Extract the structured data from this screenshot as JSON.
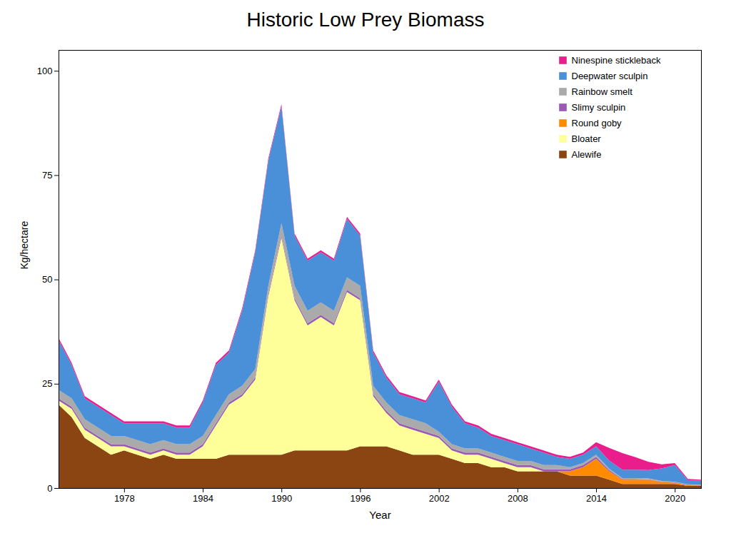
{
  "chart_data": {
    "type": "area",
    "title": "Historic Low Prey Biomass",
    "xlabel": "Year",
    "ylabel": "Kg/hectare",
    "stacked": true,
    "grid": false,
    "legend": "upper right",
    "xlim": [
      1973,
      2022
    ],
    "xticks": [
      1978,
      1984,
      1990,
      1996,
      2002,
      2008,
      2014,
      2020
    ],
    "ylim": [
      0,
      105
    ],
    "yticks": [
      0,
      25,
      50,
      75,
      100
    ],
    "x": [
      1973,
      1974,
      1975,
      1976,
      1977,
      1978,
      1979,
      1980,
      1981,
      1982,
      1983,
      1984,
      1985,
      1986,
      1987,
      1988,
      1989,
      1990,
      1991,
      1992,
      1993,
      1994,
      1995,
      1996,
      1997,
      1998,
      1999,
      2000,
      2001,
      2002,
      2003,
      2004,
      2005,
      2006,
      2007,
      2008,
      2009,
      2010,
      2011,
      2012,
      2013,
      2014,
      2015,
      2016,
      2017,
      2018,
      2019,
      2020,
      2021,
      2022
    ],
    "series": [
      {
        "name": "Alewife",
        "color": "#8B4513",
        "values": [
          20,
          17,
          12,
          10,
          8,
          9,
          8,
          7,
          8,
          7,
          7,
          7,
          7,
          8,
          8,
          8,
          8,
          8,
          9,
          9,
          9,
          9,
          9,
          10,
          10,
          10,
          9,
          8,
          8,
          8,
          7,
          6,
          6,
          5,
          5,
          4,
          4,
          4,
          4,
          3,
          3,
          3,
          2,
          1,
          1,
          1,
          1,
          1,
          0.5,
          0.5
        ]
      },
      {
        "name": "Bloater",
        "color": "#FFFF99",
        "values": [
          1,
          2,
          2,
          2,
          2,
          1,
          1,
          1,
          1,
          1,
          1,
          3,
          8,
          12,
          14,
          18,
          38,
          52,
          36,
          30,
          32,
          30,
          38,
          35,
          12,
          8,
          6,
          6,
          5,
          4,
          2,
          2,
          2,
          2,
          1,
          1,
          1,
          0,
          0,
          0,
          0,
          0,
          0,
          0,
          0,
          0,
          0,
          0,
          0,
          0
        ]
      },
      {
        "name": "Round goby",
        "color": "#FF8C00",
        "values": [
          0,
          0,
          0,
          0,
          0,
          0,
          0,
          0,
          0,
          0,
          0,
          0,
          0,
          0,
          0,
          0,
          0,
          0,
          0,
          0,
          0,
          0,
          0,
          0,
          0,
          0,
          0,
          0,
          0,
          0,
          0,
          0,
          0,
          0,
          0,
          0,
          0,
          0,
          0,
          1,
          2,
          4,
          2,
          1,
          1,
          1,
          0.5,
          0.3,
          0.2,
          0.1
        ]
      },
      {
        "name": "Slimy sculpin",
        "color": "#9B59B6",
        "values": [
          0.5,
          0.5,
          0.5,
          0.5,
          0.5,
          0.5,
          0.5,
          0.5,
          0.5,
          0.5,
          0.5,
          0.5,
          0.5,
          0.5,
          0.5,
          0.5,
          0.5,
          0.5,
          0.5,
          0.5,
          0.5,
          0.5,
          0.5,
          0.5,
          0.5,
          0.5,
          0.5,
          0.5,
          0.5,
          0.5,
          0.5,
          0.5,
          0.5,
          0.5,
          0.5,
          0.5,
          0.5,
          0.5,
          0.5,
          0.5,
          0.5,
          0.5,
          0.3,
          0.2,
          0.2,
          0.1,
          0.1,
          0.1,
          0.1,
          0.1
        ]
      },
      {
        "name": "Rainbow smelt",
        "color": "#AAAAAA",
        "values": [
          2,
          2,
          2,
          2,
          2,
          2,
          2,
          2,
          2,
          2,
          2,
          2,
          2,
          2,
          2,
          2,
          2,
          3,
          3,
          3,
          3,
          3,
          3,
          3,
          2,
          2,
          2,
          2,
          2,
          1,
          1,
          1,
          1,
          1,
          1,
          1,
          1,
          1,
          1,
          0.5,
          0.5,
          0.5,
          0.3,
          0.2,
          0.2,
          0.2,
          0.1,
          0.1,
          0.1,
          0.1
        ]
      },
      {
        "name": "Deepwater sculpin",
        "color": "#4A90D9",
        "values": [
          12,
          8,
          5,
          5,
          5,
          3,
          4,
          5,
          4,
          4,
          4,
          8,
          12,
          10,
          18,
          28,
          30,
          28,
          12,
          12,
          12,
          12,
          14,
          12,
          8,
          6,
          5,
          5,
          5,
          12,
          9,
          6,
          5,
          4,
          4,
          4,
          3,
          3,
          2,
          2,
          2,
          2,
          2,
          2,
          2,
          2,
          3,
          4,
          1,
          1
        ]
      },
      {
        "name": "Ninespine stickleback",
        "color": "#E91E8C",
        "values": [
          0.5,
          0.5,
          0.5,
          0.5,
          0.5,
          0.5,
          0.5,
          0.5,
          0.5,
          0.5,
          0.5,
          0.5,
          0.5,
          0.5,
          0.5,
          0.5,
          0.5,
          0.5,
          0.5,
          0.5,
          0.5,
          0.5,
          0.5,
          0.5,
          0.5,
          0.5,
          0.5,
          0.5,
          0.5,
          0.5,
          0.5,
          0.5,
          0.5,
          0.5,
          0.5,
          0.5,
          0.5,
          0.5,
          0.5,
          0.5,
          0.5,
          1,
          3,
          4,
          3,
          2,
          1,
          0.5,
          0.3,
          0.2
        ]
      }
    ]
  }
}
